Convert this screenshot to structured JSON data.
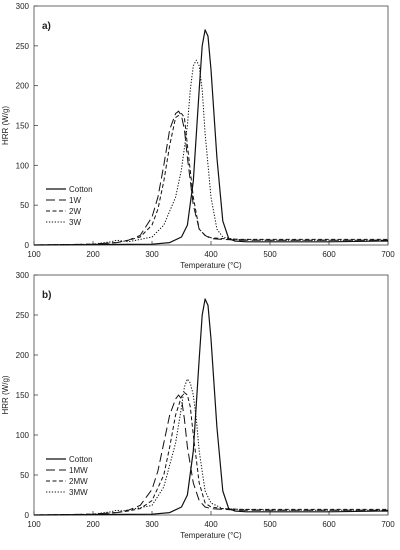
{
  "chart_data": [
    {
      "type": "line",
      "panel_label": "a)",
      "xlabel": "Temperature (°C)",
      "ylabel": "HRR (W/g)",
      "xlim": [
        100,
        700
      ],
      "ylim": [
        0,
        300
      ],
      "xticks": [
        100,
        200,
        300,
        400,
        500,
        600,
        700
      ],
      "yticks": [
        0,
        50,
        100,
        150,
        200,
        250,
        300
      ],
      "grid": false,
      "legend_position": "lower-left",
      "series": [
        {
          "name": "Cotton",
          "dash": "solid",
          "x": [
            100,
            300,
            330,
            350,
            360,
            370,
            380,
            385,
            390,
            395,
            400,
            410,
            420,
            430,
            440,
            460,
            500,
            600,
            700
          ],
          "y": [
            0,
            1,
            3,
            10,
            25,
            80,
            195,
            250,
            270,
            262,
            220,
            110,
            30,
            8,
            5,
            4,
            4,
            4,
            5
          ]
        },
        {
          "name": "1W",
          "dash": "longdash",
          "x": [
            100,
            200,
            240,
            260,
            280,
            300,
            310,
            320,
            330,
            340,
            345,
            350,
            355,
            360,
            370,
            380,
            390,
            400,
            420,
            450,
            500,
            600,
            700
          ],
          "y": [
            0,
            1,
            3,
            6,
            12,
            35,
            60,
            100,
            145,
            165,
            168,
            162,
            145,
            110,
            50,
            20,
            12,
            8,
            7,
            6,
            6,
            6,
            6
          ]
        },
        {
          "name": "2W",
          "dash": "shortdash",
          "x": [
            100,
            200,
            240,
            260,
            280,
            300,
            310,
            320,
            330,
            340,
            350,
            355,
            360,
            370,
            380,
            390,
            400,
            420,
            450,
            500,
            600,
            700
          ],
          "y": [
            0,
            1,
            3,
            6,
            10,
            25,
            45,
            80,
            125,
            160,
            165,
            160,
            125,
            60,
            20,
            12,
            9,
            8,
            7,
            7,
            7,
            7
          ]
        },
        {
          "name": "3W",
          "dash": "dotted",
          "x": [
            100,
            200,
            230,
            240,
            250,
            260,
            300,
            320,
            340,
            350,
            360,
            365,
            370,
            375,
            380,
            385,
            390,
            400,
            410,
            420,
            440,
            500,
            600,
            700
          ],
          "y": [
            0,
            1,
            4,
            6,
            5,
            4,
            10,
            25,
            60,
            95,
            150,
            195,
            225,
            232,
            225,
            195,
            140,
            60,
            20,
            10,
            7,
            6,
            6,
            6
          ]
        }
      ]
    },
    {
      "type": "line",
      "panel_label": "b)",
      "xlabel": "Temperature (°C)",
      "ylabel": "HRR (W/g)",
      "xlim": [
        100,
        700
      ],
      "ylim": [
        0,
        300
      ],
      "xticks": [
        100,
        200,
        300,
        400,
        500,
        600,
        700
      ],
      "yticks": [
        0,
        50,
        100,
        150,
        200,
        250,
        300
      ],
      "grid": false,
      "legend_position": "lower-left",
      "series": [
        {
          "name": "Cotton",
          "dash": "solid",
          "x": [
            100,
            300,
            330,
            350,
            360,
            370,
            380,
            385,
            390,
            395,
            400,
            410,
            420,
            430,
            440,
            460,
            500,
            600,
            700
          ],
          "y": [
            0,
            1,
            3,
            10,
            25,
            80,
            195,
            250,
            270,
            262,
            220,
            110,
            30,
            8,
            5,
            4,
            4,
            4,
            5
          ]
        },
        {
          "name": "1MW",
          "dash": "longdash",
          "x": [
            100,
            200,
            240,
            260,
            280,
            300,
            310,
            320,
            330,
            340,
            345,
            350,
            355,
            360,
            370,
            380,
            390,
            400,
            420,
            450,
            500,
            600,
            700
          ],
          "y": [
            0,
            1,
            3,
            6,
            12,
            32,
            55,
            90,
            125,
            145,
            150,
            145,
            120,
            85,
            40,
            18,
            10,
            8,
            7,
            6,
            6,
            6,
            6
          ]
        },
        {
          "name": "2MW",
          "dash": "shortdash",
          "x": [
            100,
            200,
            240,
            260,
            280,
            300,
            320,
            330,
            340,
            350,
            355,
            360,
            365,
            370,
            380,
            390,
            400,
            420,
            450,
            500,
            600,
            700
          ],
          "y": [
            0,
            1,
            3,
            5,
            8,
            18,
            50,
            85,
            125,
            148,
            153,
            150,
            135,
            100,
            40,
            15,
            10,
            8,
            7,
            7,
            7,
            7
          ]
        },
        {
          "name": "3MW",
          "dash": "dotted",
          "x": [
            100,
            200,
            230,
            240,
            250,
            300,
            320,
            340,
            350,
            355,
            360,
            365,
            370,
            375,
            380,
            390,
            400,
            420,
            450,
            500,
            600,
            700
          ],
          "y": [
            0,
            1,
            4,
            6,
            5,
            12,
            35,
            90,
            135,
            160,
            170,
            165,
            150,
            120,
            80,
            30,
            15,
            8,
            7,
            6,
            6,
            6
          ]
        }
      ]
    }
  ]
}
